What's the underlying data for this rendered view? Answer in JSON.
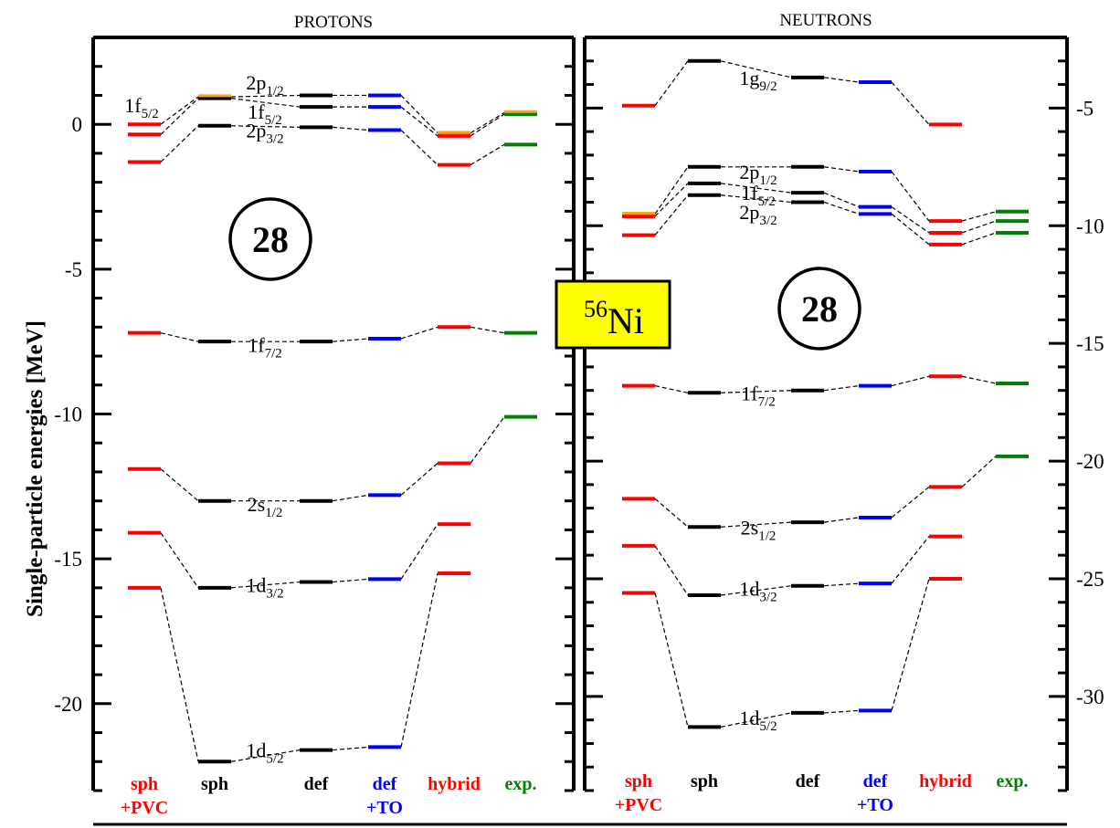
{
  "chart_data": [
    {
      "type": "level-scheme",
      "title": "PROTONS",
      "ylabel": "Single-particle energies [MeV]",
      "ylim": [
        -23,
        3
      ],
      "yticks": [
        0,
        -5,
        -10,
        -15,
        -20
      ],
      "columns": [
        {
          "label": [
            "sph",
            "+PVC"
          ],
          "color": "#ff0000"
        },
        {
          "label": [
            "sph"
          ],
          "color": "#000000"
        },
        {
          "label": [
            "def"
          ],
          "color": "#000000"
        },
        {
          "label": [
            "def",
            "+TO"
          ],
          "color": "#0000ff"
        },
        {
          "label": [
            "hybrid"
          ],
          "color": "#ff0000"
        },
        {
          "label": [
            "exp."
          ],
          "color": "#008000"
        }
      ],
      "magic_number": "28",
      "levels": [
        {
          "orbit": "1d",
          "j": "5/2",
          "values": [
            -16.0,
            -22.0,
            -21.6,
            -21.5,
            -15.5,
            null
          ]
        },
        {
          "orbit": "1d",
          "j": "3/2",
          "values": [
            -14.1,
            -16.0,
            -15.8,
            -15.7,
            -13.8,
            null
          ]
        },
        {
          "orbit": "2s",
          "j": "1/2",
          "values": [
            -11.9,
            -13.0,
            -13.0,
            -12.8,
            -11.7,
            -10.1
          ]
        },
        {
          "orbit": "1f",
          "j": "7/2",
          "values": [
            -7.2,
            -7.5,
            -7.5,
            -7.4,
            -7.0,
            -7.2
          ]
        },
        {
          "orbit": "2p",
          "j": "3/2",
          "values": [
            -1.3,
            -0.05,
            -0.1,
            -0.2,
            -1.4,
            -0.7
          ]
        },
        {
          "orbit": "1f",
          "j": "5/2",
          "values": [
            -0.35,
            0.9,
            0.6,
            0.6,
            -0.4,
            0.35
          ]
        },
        {
          "orbit": "2p",
          "j": "1/2",
          "values": [
            0.0,
            0.95,
            1.0,
            1.0,
            -0.3,
            0.4
          ]
        }
      ],
      "level_labels": [
        {
          "orbit": "1d",
          "j": "5/2",
          "at": -21.6
        },
        {
          "orbit": "1d",
          "j": "3/2",
          "at": -15.9
        },
        {
          "orbit": "2s",
          "j": "1/2",
          "at": -13.1
        },
        {
          "orbit": "1f",
          "j": "7/2",
          "at": -7.6
        },
        {
          "orbit": "2p",
          "j": "3/2",
          "at": -0.2
        },
        {
          "orbit": "1f",
          "j": "5/2",
          "at": 0.45
        },
        {
          "orbit": "2p",
          "j": "1/2",
          "at": 1.45
        }
      ],
      "side_label": {
        "orbit": "1f",
        "j": "5/2",
        "at": 0.35
      }
    },
    {
      "type": "level-scheme",
      "title": "NEUTRONS",
      "ylabel": "",
      "ylim": [
        -34,
        -2
      ],
      "yticks": [
        -5,
        -10,
        -15,
        -20,
        -25,
        -30
      ],
      "columns": [
        {
          "label": [
            "sph",
            "+PVC"
          ],
          "color": "#ff0000"
        },
        {
          "label": [
            "sph"
          ],
          "color": "#000000"
        },
        {
          "label": [
            "def"
          ],
          "color": "#000000"
        },
        {
          "label": [
            "def",
            "+TO"
          ],
          "color": "#0000ff"
        },
        {
          "label": [
            "hybrid"
          ],
          "color": "#ff0000"
        },
        {
          "label": [
            "exp."
          ],
          "color": "#008000"
        }
      ],
      "magic_number": "28",
      "levels": [
        {
          "orbit": "1d",
          "j": "5/2",
          "values": [
            -25.6,
            -31.3,
            -30.7,
            -30.6,
            -25.0,
            null
          ]
        },
        {
          "orbit": "1d",
          "j": "3/2",
          "values": [
            -23.6,
            -25.7,
            -25.3,
            -25.2,
            -23.2,
            null
          ]
        },
        {
          "orbit": "2s",
          "j": "1/2",
          "values": [
            -21.6,
            -22.8,
            -22.6,
            -22.4,
            -21.1,
            -19.8
          ]
        },
        {
          "orbit": "1f",
          "j": "7/2",
          "values": [
            -16.8,
            -17.1,
            -17.0,
            -16.8,
            -16.4,
            -16.7
          ]
        },
        {
          "orbit": "2p",
          "j": "3/2",
          "values": [
            -10.4,
            -8.7,
            -9.0,
            -9.5,
            -10.8,
            -10.3
          ]
        },
        {
          "orbit": "1f",
          "j": "5/2",
          "values": [
            -9.6,
            -8.2,
            -8.6,
            -9.2,
            -10.3,
            -9.8
          ]
        },
        {
          "orbit": "2p",
          "j": "1/2",
          "values": [
            -9.5,
            -7.5,
            -7.5,
            -7.7,
            -9.8,
            -9.4
          ]
        },
        {
          "orbit": "1g",
          "j": "9/2",
          "values": [
            -4.9,
            -3.0,
            -3.7,
            -3.9,
            -5.7,
            null
          ]
        }
      ],
      "level_labels": [
        {
          "orbit": "1d",
          "j": "5/2",
          "at": -30.9
        },
        {
          "orbit": "1d",
          "j": "3/2",
          "at": -25.4
        },
        {
          "orbit": "2s",
          "j": "1/2",
          "at": -22.8
        },
        {
          "orbit": "1f",
          "j": "7/2",
          "at": -17.1
        },
        {
          "orbit": "2p",
          "j": "3/2",
          "at": -9.4
        },
        {
          "orbit": "1f",
          "j": "5/2",
          "at": -8.6
        },
        {
          "orbit": "2p",
          "j": "1/2",
          "at": -7.7
        },
        {
          "orbit": "1g",
          "j": "9/2",
          "at": -3.7
        }
      ]
    }
  ],
  "nucleus": {
    "mass_number": "56",
    "symbol": "Ni",
    "box_color": "#ffff00"
  }
}
